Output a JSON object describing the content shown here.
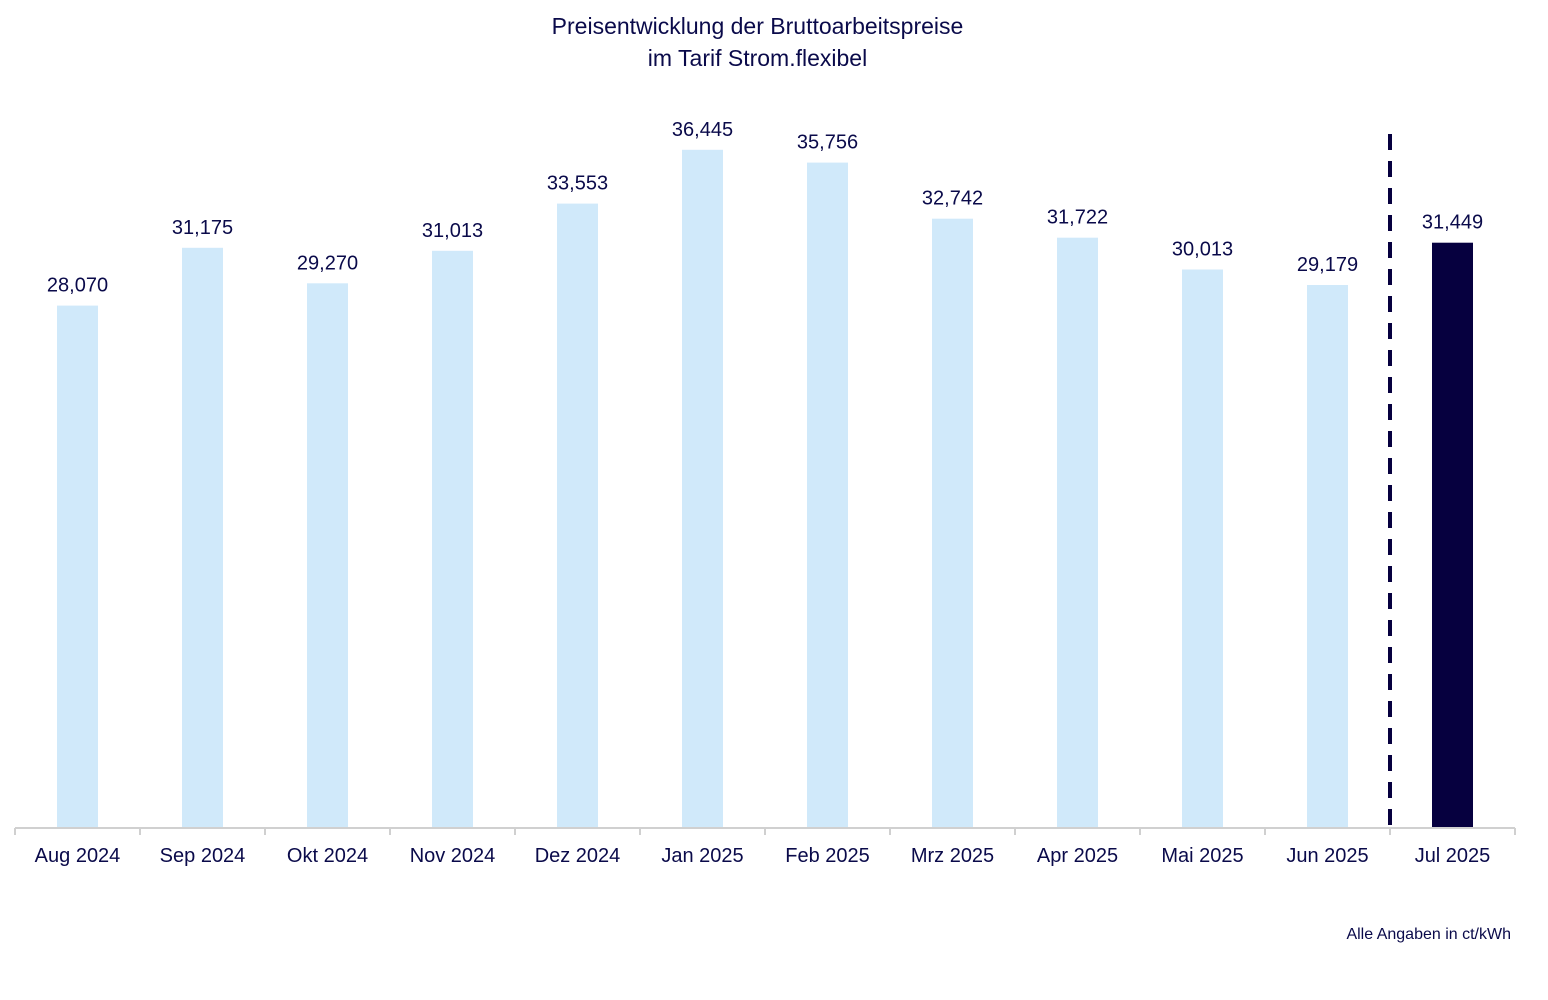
{
  "chart_data": {
    "type": "bar",
    "title": [
      "Preisentwicklung der Bruttoarbeitspreise",
      "im Tarif Strom.flexibel"
    ],
    "categories": [
      "Aug 2024",
      "Sep 2024",
      "Okt 2024",
      "Nov 2024",
      "Dez 2024",
      "Jan 2025",
      "Feb 2025",
      "Mrz 2025",
      "Apr 2025",
      "Mai 2025",
      "Jun 2025",
      "Jul 2025"
    ],
    "values": [
      28.07,
      31.175,
      29.27,
      31.013,
      33.553,
      36.445,
      35.756,
      32.742,
      31.722,
      30.013,
      29.179,
      31.449
    ],
    "value_labels": [
      "28,070",
      "31,175",
      "29,270",
      "31,013",
      "33,553",
      "36,445",
      "35,756",
      "32,742",
      "31,722",
      "30,013",
      "29,179",
      "31,449"
    ],
    "highlight_index": 11,
    "divider_after_index": 10,
    "ylim": [
      0,
      38
    ],
    "xlabel": "",
    "ylabel": "",
    "grid": false,
    "unit_note": "Alle Angaben in ct/kWh",
    "colors": {
      "bar": "#d0e9fa",
      "highlight_bar": "#06003f",
      "text": "#0a0a4a",
      "axis": "#d0d0d0",
      "divider": "#06003f"
    }
  }
}
